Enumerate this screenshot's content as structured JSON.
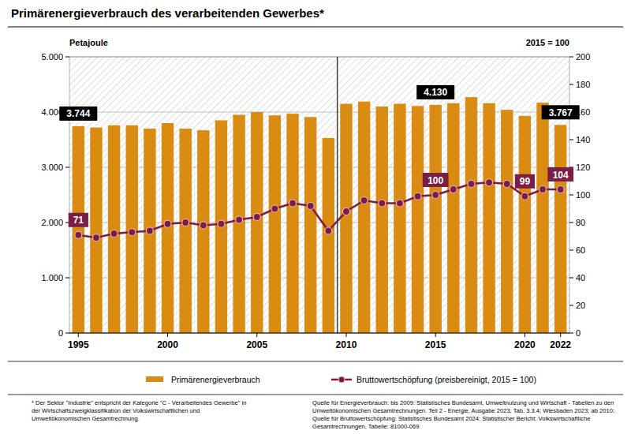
{
  "chart_data": {
    "type": "bar",
    "title": "Primärenergieverbrauch des verarbeitenden Gewerbes*",
    "y_label": "Petajoule",
    "y2_label": "2015 = 100",
    "categories": [
      "1995",
      null,
      null,
      null,
      null,
      "2000",
      null,
      null,
      null,
      null,
      "2005",
      null,
      null,
      null,
      null,
      "2010",
      null,
      null,
      null,
      null,
      "2015",
      null,
      null,
      null,
      null,
      "2020",
      null,
      "2022"
    ],
    "series": [
      {
        "name": "Primärenergieverbrauch",
        "type": "bar",
        "color": "#d98b12",
        "values": [
          3744,
          3720,
          3760,
          3760,
          3700,
          3800,
          3700,
          3670,
          3850,
          3950,
          4000,
          3940,
          3970,
          3910,
          3530,
          4150,
          4190,
          4100,
          4150,
          4110,
          4130,
          4160,
          4270,
          4160,
          4040,
          3930,
          4170,
          3767
        ],
        "value_labels": [
          "3.744",
          null,
          null,
          null,
          null,
          null,
          null,
          null,
          null,
          null,
          null,
          null,
          null,
          null,
          null,
          null,
          null,
          null,
          null,
          null,
          "4.130",
          null,
          null,
          null,
          null,
          null,
          null,
          "3.767"
        ]
      },
      {
        "name": "Bruttowertschöpfung (preisbereinigt, 2015 = 100)",
        "type": "line",
        "axis": "y2",
        "color": "#7b1d45",
        "marker": "circle",
        "values": [
          71,
          69,
          72,
          73,
          74,
          79,
          80,
          78,
          79,
          82,
          84,
          90,
          94,
          92,
          74,
          88,
          96,
          94,
          94,
          99,
          100,
          104,
          108,
          109,
          108,
          99,
          104,
          104
        ],
        "value_labels": [
          "71",
          null,
          null,
          null,
          null,
          null,
          null,
          null,
          null,
          null,
          null,
          null,
          null,
          null,
          null,
          null,
          null,
          null,
          null,
          null,
          "100",
          null,
          null,
          null,
          null,
          "99",
          null,
          "104"
        ]
      }
    ],
    "ylim": [
      0,
      5000
    ],
    "yticks": [
      0,
      {
        "value": 1000,
        "label": "1.000"
      },
      {
        "value": 2000,
        "label": "2.000"
      },
      {
        "value": 3000,
        "label": "3.000"
      },
      {
        "value": 4000,
        "label": "4.000"
      },
      {
        "value": 5000,
        "label": "5.000"
      }
    ],
    "y2lim": [
      0,
      200
    ],
    "y2ticks": [
      0,
      20,
      40,
      60,
      80,
      100,
      120,
      140,
      160,
      180,
      200
    ],
    "grid": true,
    "data_labels": true,
    "legend": "bottom",
    "footnote": [
      "* Der Sektor \"Industrie\" entspricht der Kategorie \"C - Verarbeitendes Gewerbe\" in",
      "der Wirtschaftszweigklassifikation der Volkswirtschaftlichen und",
      "Umweltökonomischen Gesamtrechnung."
    ],
    "source": [
      "Quelle für Energieverbrauch: bis 2009: Statistisches Bundesamt, Umweltnutzung und Wirtschaft - Tabellen zu den",
      "Umweltökonomischen Gesamtrechnungen. Teil 2 - Energie, Ausgabe 2023, Tab. 3.3.4; Wiesbaden 2023; ab 2010:",
      "Quelle für Bruttowertschöpfung: Statistisches Bundesamt 2024: Statistischer Bericht: Volkswirtschaftliche",
      "Gesamtrechnungen, Tabelle: 81000-069"
    ]
  }
}
